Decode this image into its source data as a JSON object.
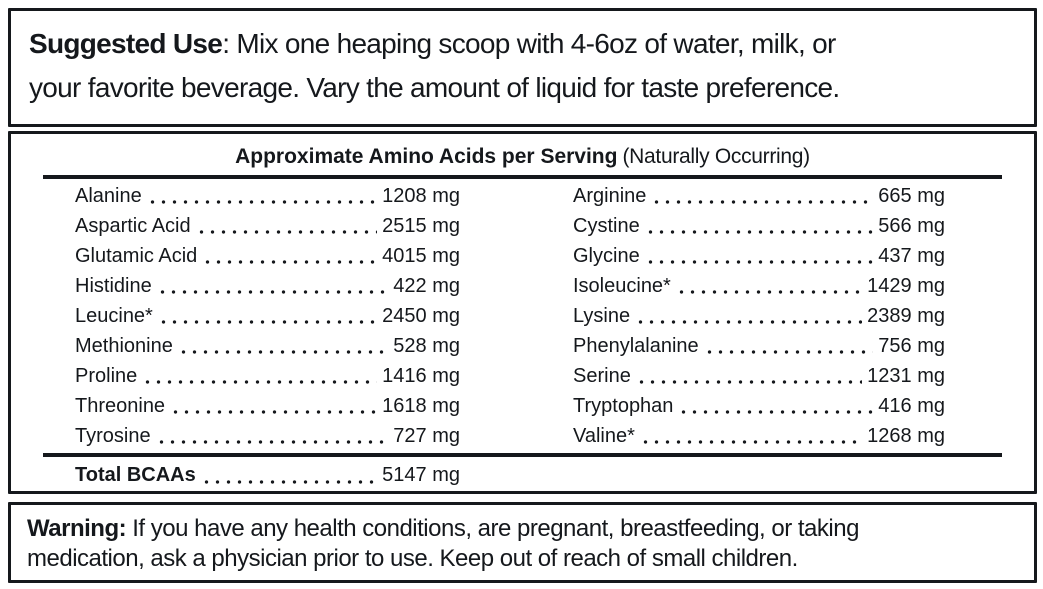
{
  "suggested_use": {
    "label": "Suggested Use",
    "line1_rest": ": Mix one heaping scoop with 4-6oz of water, milk, or",
    "line2": "your favorite beverage. Vary the amount of liquid for taste preference."
  },
  "amino_table": {
    "title": "Approximate Amino Acids per Serving",
    "title_note": "(Naturally Occurring)",
    "left_rows": [
      {
        "name": "Alanine",
        "value": "1208 mg"
      },
      {
        "name": "Aspartic Acid",
        "value": "2515 mg"
      },
      {
        "name": "Glutamic Acid",
        "value": "4015 mg"
      },
      {
        "name": "Histidine",
        "value": "422 mg"
      },
      {
        "name": "Leucine*",
        "value": "2450 mg"
      },
      {
        "name": "Methionine",
        "value": "528 mg"
      },
      {
        "name": "Proline",
        "value": "1416 mg"
      },
      {
        "name": "Threonine",
        "value": "1618 mg"
      },
      {
        "name": "Tyrosine",
        "value": "727 mg"
      }
    ],
    "right_rows": [
      {
        "name": "Arginine",
        "value": "665 mg"
      },
      {
        "name": "Cystine",
        "value": "566 mg"
      },
      {
        "name": "Glycine",
        "value": "437 mg"
      },
      {
        "name": "Isoleucine*",
        "value": "1429 mg"
      },
      {
        "name": "Lysine",
        "value": "2389 mg"
      },
      {
        "name": "Phenylalanine",
        "value": "756 mg"
      },
      {
        "name": "Serine",
        "value": "1231 mg"
      },
      {
        "name": "Tryptophan",
        "value": "416 mg"
      },
      {
        "name": "Valine*",
        "value": "1268 mg"
      }
    ],
    "total": {
      "name": "Total BCAAs",
      "value": "5147 mg"
    }
  },
  "warning": {
    "label": "Warning:",
    "line1_rest": " If you have any health conditions, are pregnant, breastfeeding, or taking",
    "line2": "medication, ask a physician prior to use. Keep out of reach of small children."
  },
  "colors": {
    "text": "#15181c",
    "border": "#15181c",
    "background": "#ffffff"
  }
}
